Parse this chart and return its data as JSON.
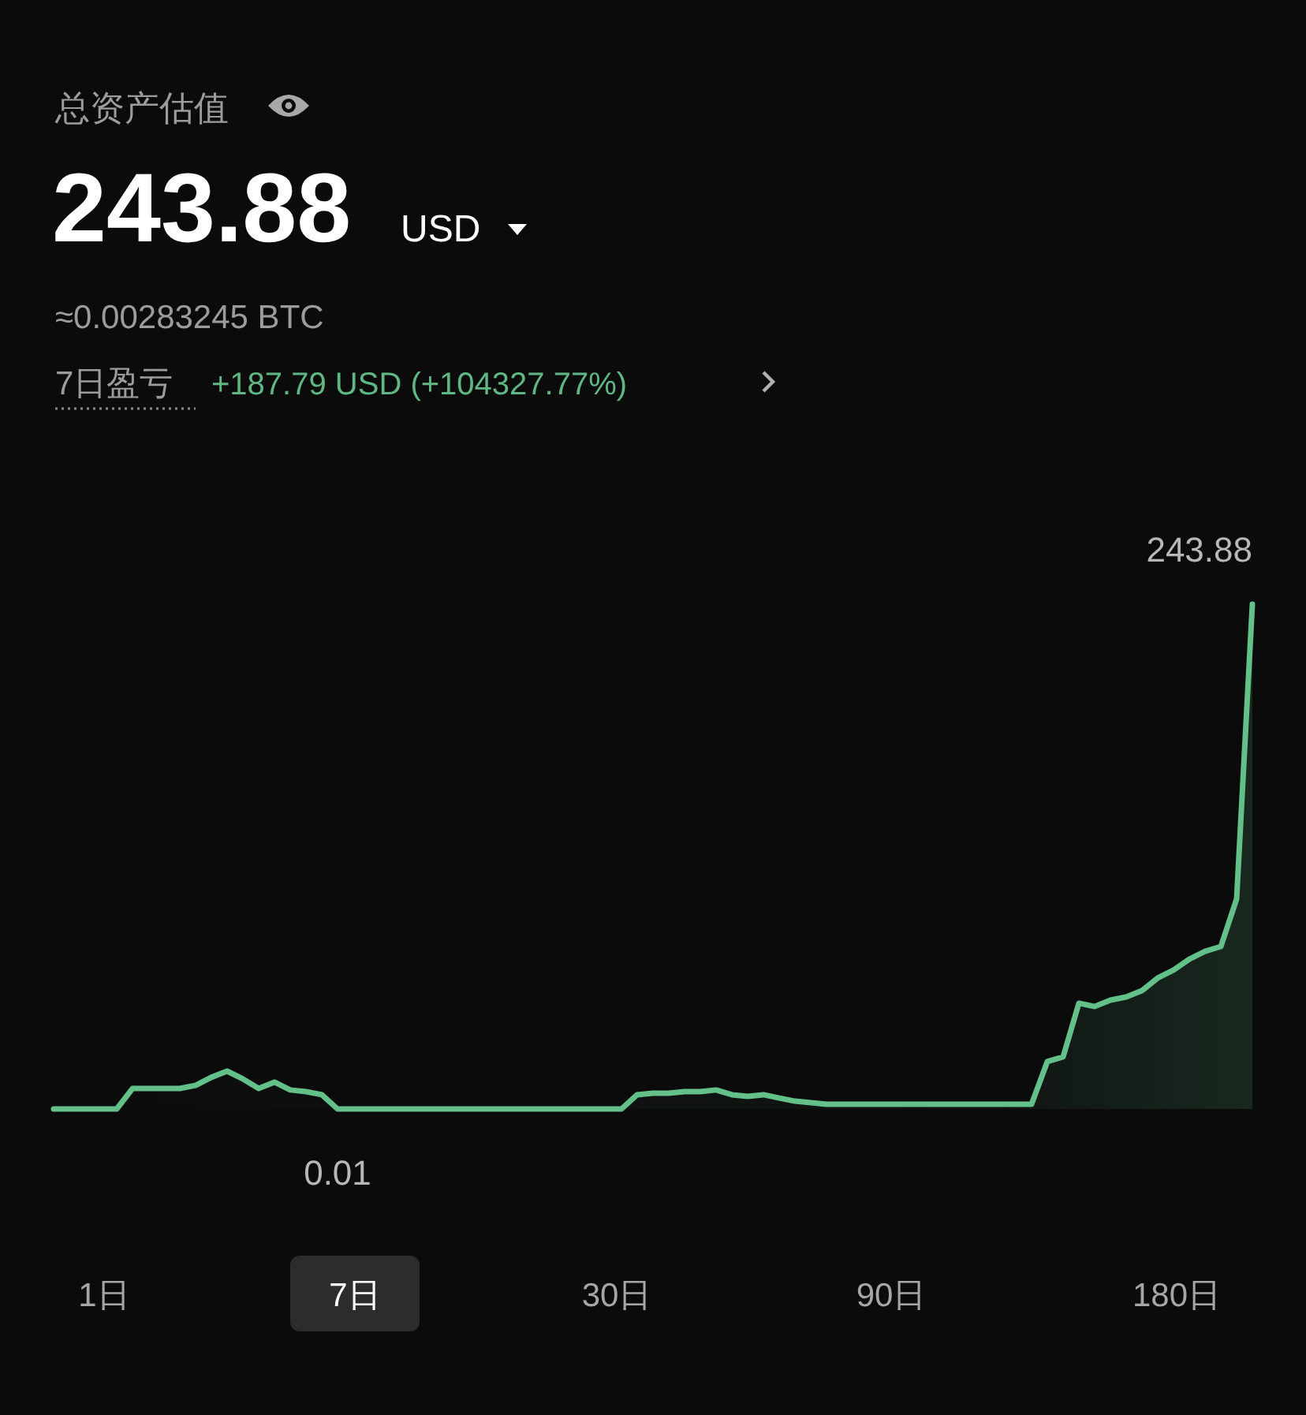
{
  "chart_data": {
    "type": "area",
    "title": "总资产估值",
    "subtitle": "243.88",
    "annotations": [
      "USD",
      "≈0.00283245 BTC",
      "7日盈亏",
      "+187.79 USD (+104327.77%)",
      "1日",
      "7日",
      "30日",
      "90日",
      "180日"
    ],
    "categories": [
      null,
      null,
      null,
      null,
      null,
      null,
      null,
      null,
      null,
      null,
      null,
      null,
      null,
      null,
      null,
      null,
      null,
      null,
      null,
      null,
      null,
      null,
      null,
      null,
      null,
      null,
      null,
      null,
      null,
      null,
      null,
      null,
      null,
      null,
      null,
      null,
      null,
      null,
      null,
      null,
      null,
      null,
      null,
      null,
      null,
      null,
      null,
      null,
      null,
      null,
      null,
      null,
      null,
      null,
      null,
      null,
      null,
      null,
      null,
      null,
      null,
      null,
      null,
      null,
      null,
      null,
      null,
      null,
      null,
      null,
      null,
      null,
      null,
      null,
      null,
      null,
      null
    ],
    "series": [
      {
        "color": "#62c088",
        "values": [
          0.01,
          0.01,
          0.01,
          0.01,
          0.01,
          9.9,
          9.9,
          9.9,
          9.9,
          11.4,
          15.3,
          18.3,
          14.5,
          9.9,
          13.0,
          9.2,
          8.4,
          6.9,
          0.01,
          0.01,
          0.01,
          0.01,
          0.01,
          0.01,
          0.01,
          0.01,
          0.01,
          0.01,
          0.01,
          0.01,
          0.01,
          0.01,
          0.01,
          0.01,
          0.01,
          0.01,
          0.01,
          6.9,
          7.6,
          7.6,
          8.4,
          8.4,
          9.2,
          6.9,
          6.1,
          6.9,
          5.3,
          3.8,
          3.1,
          2.3,
          2.3,
          2.3,
          2.3,
          2.3,
          2.3,
          2.3,
          2.3,
          2.3,
          2.3,
          2.3,
          2.3,
          2.3,
          2.3,
          22.9,
          25.2,
          51.1,
          49.5,
          52.6,
          54.1,
          57.2,
          63.3,
          67.1,
          72.4,
          76.2,
          78.5,
          101.4,
          243.88
        ],
        "value_labels": [
          null,
          null,
          null,
          null,
          null,
          null,
          null,
          null,
          null,
          null,
          null,
          null,
          null,
          null,
          null,
          null,
          null,
          null,
          "0.01",
          null,
          null,
          null,
          null,
          null,
          null,
          null,
          null,
          null,
          null,
          null,
          null,
          null,
          null,
          null,
          null,
          null,
          null,
          null,
          null,
          null,
          null,
          null,
          null,
          null,
          null,
          null,
          null,
          null,
          null,
          null,
          null,
          null,
          null,
          null,
          null,
          null,
          null,
          null,
          null,
          null,
          null,
          null,
          null,
          null,
          null,
          null,
          null,
          null,
          null,
          null,
          null,
          null,
          null,
          null,
          null,
          null,
          "243.88"
        ]
      }
    ]
  }
}
